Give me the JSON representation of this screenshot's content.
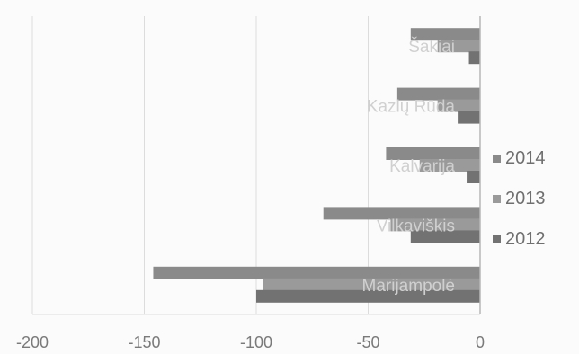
{
  "chart_data": {
    "type": "bar",
    "orientation": "horizontal",
    "categories": [
      "Marijampolė",
      "Vilkaviškis",
      "Kalvarija",
      "Kazlų Rūda",
      "Šakiai"
    ],
    "category_labels_shown": [
      "Marijampolė",
      "Vilkaviškis",
      "Kalvarija",
      "Kazlų Rūda",
      "Šakiai"
    ],
    "series": [
      {
        "name": "2014",
        "values": [
          -146,
          -70,
          -42,
          -37,
          -31
        ]
      },
      {
        "name": "2013",
        "values": [
          -97,
          -40,
          -27,
          -19,
          -19
        ]
      },
      {
        "name": "2012",
        "values": [
          -100,
          -31,
          -6,
          -10,
          -5
        ]
      }
    ],
    "x_ticks": [
      "-200",
      "-150",
      "-100",
      "-50",
      "0"
    ],
    "xlim": [
      -200,
      0
    ],
    "grid": "vertical",
    "legend_position": "right",
    "colors": {
      "2014": "#8a8a8a",
      "2013": "#9a9a9a",
      "2012": "#727272",
      "grid": "#dcdcdc",
      "axis": "#b8b8b8"
    }
  }
}
